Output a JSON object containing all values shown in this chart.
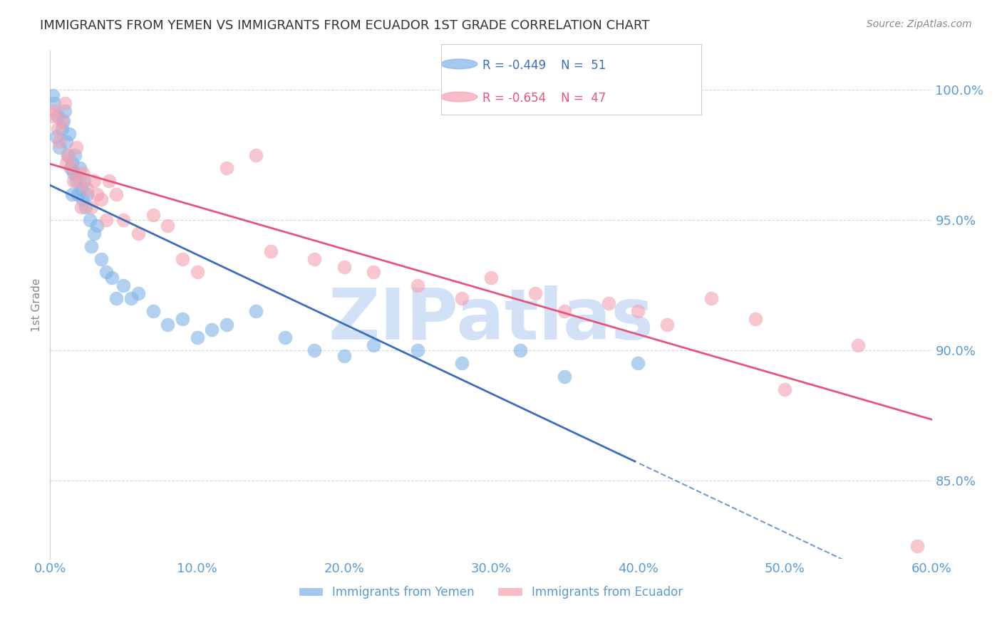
{
  "title": "IMMIGRANTS FROM YEMEN VS IMMIGRANTS FROM ECUADOR 1ST GRADE CORRELATION CHART",
  "source": "Source: ZipAtlas.com",
  "ylabel": "1st Grade",
  "xtick_labels": [
    "0.0%",
    "10.0%",
    "20.0%",
    "30.0%",
    "40.0%",
    "50.0%",
    "60.0%"
  ],
  "xtick_values": [
    0,
    10,
    20,
    30,
    40,
    50,
    60
  ],
  "ytick_labels": [
    "100.0%",
    "95.0%",
    "90.0%",
    "85.0%"
  ],
  "ytick_values": [
    100,
    95,
    90,
    85
  ],
  "xlim": [
    0,
    60
  ],
  "ylim": [
    82,
    101.5
  ],
  "legend_blue_label": "Immigrants from Yemen",
  "legend_pink_label": "Immigrants from Ecuador",
  "legend_R_blue": "R = -0.449",
  "legend_N_blue": "N =  51",
  "legend_R_pink": "R = -0.654",
  "legend_N_pink": "N =  47",
  "blue_color": "#7fb3e8",
  "pink_color": "#f4a0b0",
  "blue_line_color": "#3a6ebd",
  "pink_line_color": "#e8537a",
  "watermark": "ZIPatlas",
  "watermark_color": "#c8daf5",
  "title_color": "#333333",
  "axis_label_color": "#5b9bd5",
  "background_color": "#ffffff",
  "grid_color": "#d0d8e8",
  "yemen_x": [
    0.3,
    0.5,
    0.8,
    0.9,
    1.0,
    1.1,
    1.2,
    1.3,
    1.4,
    1.5,
    1.6,
    1.7,
    1.8,
    1.9,
    2.0,
    2.1,
    2.2,
    2.3,
    2.4,
    2.5,
    2.7,
    3.0,
    3.2,
    3.5,
    3.8,
    4.2,
    5.0,
    5.5,
    6.0,
    7.0,
    8.0,
    9.0,
    10.0,
    11.0,
    12.0,
    14.0,
    16.0,
    18.0,
    20.0,
    22.0,
    25.0,
    28.0,
    32.0,
    35.0,
    40.0,
    0.2,
    0.4,
    0.6,
    1.5,
    2.8,
    4.5
  ],
  "yemen_y": [
    99.5,
    99.0,
    98.5,
    98.8,
    99.2,
    98.0,
    97.5,
    98.3,
    97.0,
    97.2,
    96.8,
    97.5,
    96.5,
    96.0,
    97.0,
    96.2,
    95.8,
    96.5,
    95.5,
    96.0,
    95.0,
    94.5,
    94.8,
    93.5,
    93.0,
    92.8,
    92.5,
    92.0,
    92.2,
    91.5,
    91.0,
    91.2,
    90.5,
    90.8,
    91.0,
    91.5,
    90.5,
    90.0,
    89.8,
    90.2,
    90.0,
    89.5,
    90.0,
    89.0,
    89.5,
    99.8,
    98.2,
    97.8,
    96.0,
    94.0,
    92.0
  ],
  "ecuador_x": [
    0.2,
    0.5,
    0.8,
    1.0,
    1.2,
    1.5,
    1.8,
    2.0,
    2.2,
    2.5,
    2.8,
    3.0,
    3.2,
    3.5,
    4.0,
    4.5,
    5.0,
    6.0,
    7.0,
    8.0,
    9.0,
    10.0,
    12.0,
    14.0,
    15.0,
    18.0,
    20.0,
    22.0,
    25.0,
    28.0,
    30.0,
    33.0,
    35.0,
    38.0,
    40.0,
    42.0,
    45.0,
    48.0,
    50.0,
    55.0,
    0.3,
    0.6,
    1.1,
    1.6,
    2.1,
    3.8,
    59.0
  ],
  "ecuador_y": [
    99.0,
    98.5,
    98.8,
    99.5,
    97.5,
    97.0,
    97.8,
    96.5,
    96.8,
    96.2,
    95.5,
    96.5,
    96.0,
    95.8,
    96.5,
    96.0,
    95.0,
    94.5,
    95.2,
    94.8,
    93.5,
    93.0,
    97.0,
    97.5,
    93.8,
    93.5,
    93.2,
    93.0,
    92.5,
    92.0,
    92.8,
    92.2,
    91.5,
    91.8,
    91.5,
    91.0,
    92.0,
    91.2,
    88.5,
    90.2,
    99.2,
    98.0,
    97.2,
    96.5,
    95.5,
    95.0,
    82.5
  ]
}
